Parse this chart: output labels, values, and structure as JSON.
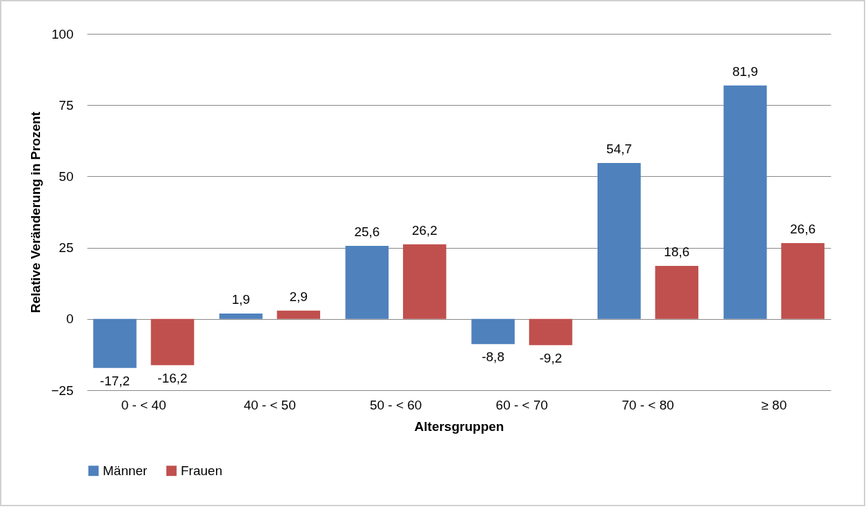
{
  "chart_data": {
    "type": "bar",
    "xlabel": "Altersgruppen",
    "ylabel": "Relative Veränderung in Prozent",
    "categories": [
      "0 - < 40",
      "40 - < 50",
      "50 - < 60",
      "60 - < 70",
      "70 - < 80",
      "≥ 80"
    ],
    "series": [
      {
        "name": "Männer",
        "color": "#4f81bd",
        "values": [
          -17.2,
          1.9,
          25.6,
          -8.8,
          54.7,
          81.9
        ],
        "value_labels": [
          "-17,2",
          "1,9",
          "25,6",
          "-8,8",
          "54,7",
          "81,9"
        ]
      },
      {
        "name": "Frauen",
        "color": "#c0504d",
        "values": [
          -16.2,
          2.9,
          26.2,
          -9.2,
          18.6,
          26.6
        ],
        "value_labels": [
          "-16,2",
          "2,9",
          "26,2",
          "-9,2",
          "18,6",
          "26,6"
        ]
      }
    ],
    "ylim": [
      -25,
      100
    ],
    "yticks": [
      -25,
      0,
      25,
      50,
      75,
      100
    ],
    "grid": "y",
    "legend": "bottom"
  }
}
